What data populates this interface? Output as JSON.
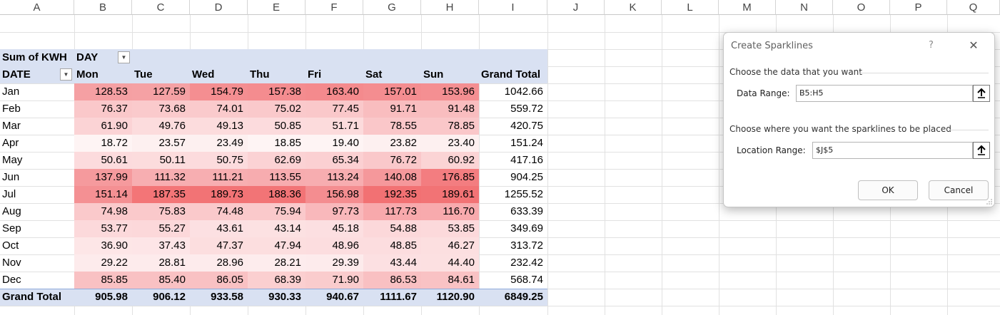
{
  "columns": [
    "A",
    "B",
    "C",
    "D",
    "E",
    "F",
    "G",
    "H",
    "I",
    "J",
    "K",
    "L",
    "M",
    "N",
    "O",
    "P",
    "Q"
  ],
  "pivot": {
    "corner_label": "Sum of KWH",
    "col_field": "DAY",
    "row_field": "DATE",
    "headers": [
      "Mon",
      "Tue",
      "Wed",
      "Thu",
      "Fri",
      "Sat",
      "Sun",
      "Grand Total"
    ],
    "rows": [
      {
        "label": "Jan",
        "values": [
          "128.53",
          "127.59",
          "154.79",
          "157.38",
          "163.40",
          "157.01",
          "153.96"
        ],
        "total": "1042.66",
        "colors": [
          "#f5a0a3",
          "#f5a1a4",
          "#f48e91",
          "#f48c8f",
          "#f48a8d",
          "#f48d90",
          "#f48f92"
        ]
      },
      {
        "label": "Feb",
        "values": [
          "76.37",
          "73.68",
          "74.01",
          "75.02",
          "77.45",
          "91.71",
          "91.48"
        ],
        "total": "559.72",
        "colors": [
          "#fac8ca",
          "#facacc",
          "#facacc",
          "#fac9cb",
          "#fac8ca",
          "#f9bdbf",
          "#f9bdbf"
        ]
      },
      {
        "label": "Mar",
        "values": [
          "61.90",
          "49.76",
          "49.13",
          "50.85",
          "51.71",
          "78.55",
          "78.85"
        ],
        "total": "420.75",
        "colors": [
          "#fbd3d5",
          "#fcdcdd",
          "#fcdcdd",
          "#fcdbdd",
          "#fcdbdc",
          "#fac7c9",
          "#fac7c9"
        ]
      },
      {
        "label": "Apr",
        "values": [
          "18.72",
          "23.57",
          "23.49",
          "18.85",
          "19.40",
          "23.82",
          "23.40"
        ],
        "total": "151.24",
        "colors": [
          "#fef4f4",
          "#fdf0f0",
          "#fdf0f0",
          "#fef4f4",
          "#fef4f4",
          "#fdf0f0",
          "#fdf0f0"
        ]
      },
      {
        "label": "May",
        "values": [
          "50.61",
          "50.11",
          "50.75",
          "62.69",
          "65.34",
          "76.72",
          "60.92"
        ],
        "total": "417.16",
        "colors": [
          "#fcdbdd",
          "#fcdcdd",
          "#fcdbdd",
          "#fbd2d4",
          "#fbd0d2",
          "#fac8ca",
          "#fbd4d5"
        ]
      },
      {
        "label": "Jun",
        "values": [
          "137.99",
          "111.32",
          "111.21",
          "113.55",
          "113.24",
          "140.08",
          "176.85"
        ],
        "total": "904.25",
        "colors": [
          "#f59a9d",
          "#f7aeb1",
          "#f7aeb1",
          "#f7acaf",
          "#f7adb0",
          "#f5989b",
          "#f37d80"
        ]
      },
      {
        "label": "Jul",
        "values": [
          "151.14",
          "187.35",
          "189.73",
          "188.36",
          "156.98",
          "192.35",
          "189.61"
        ],
        "total": "1255.52",
        "colors": [
          "#f49093",
          "#f37577",
          "#f27375",
          "#f27476",
          "#f48d90",
          "#f27173",
          "#f27375"
        ]
      },
      {
        "label": "Aug",
        "values": [
          "74.98",
          "75.83",
          "74.48",
          "75.94",
          "97.73",
          "117.73",
          "116.70"
        ],
        "total": "633.39",
        "colors": [
          "#fac9cb",
          "#fac9cb",
          "#fac9cb",
          "#fac9cb",
          "#f9b8bb",
          "#f8a9ac",
          "#f8aaad"
        ]
      },
      {
        "label": "Sep",
        "values": [
          "53.77",
          "55.27",
          "43.61",
          "43.14",
          "45.18",
          "54.88",
          "53.85"
        ],
        "total": "349.69",
        "colors": [
          "#fcd9db",
          "#fcd8da",
          "#fce0e2",
          "#fce1e2",
          "#fcdfe1",
          "#fcd8da",
          "#fcd9db"
        ]
      },
      {
        "label": "Oct",
        "values": [
          "36.90",
          "37.43",
          "47.37",
          "47.94",
          "48.96",
          "48.85",
          "46.27"
        ],
        "total": "313.72",
        "colors": [
          "#fde6e7",
          "#fde5e7",
          "#fcdedf",
          "#fcdedf",
          "#fcdddf",
          "#fcdddf",
          "#fcdfe0"
        ]
      },
      {
        "label": "Nov",
        "values": [
          "29.22",
          "28.81",
          "28.96",
          "28.21",
          "29.39",
          "43.44",
          "44.40"
        ],
        "total": "232.42",
        "colors": [
          "#fdebec",
          "#fdebec",
          "#fdebec",
          "#fdeced",
          "#fdebec",
          "#fce0e2",
          "#fce0e1"
        ]
      },
      {
        "label": "Dec",
        "values": [
          "85.85",
          "85.40",
          "86.05",
          "68.39",
          "71.90",
          "86.53",
          "84.61"
        ],
        "total": "568.74",
        "colors": [
          "#f9c1c3",
          "#f9c1c3",
          "#f9c1c3",
          "#fbcfd0",
          "#facccd",
          "#f9c0c2",
          "#f9c2c4"
        ]
      }
    ],
    "grand_total": {
      "label": "Grand Total",
      "values": [
        "905.98",
        "906.12",
        "933.58",
        "930.33",
        "940.67",
        "1111.67",
        "1120.90"
      ],
      "total": "6849.25"
    }
  },
  "dialog": {
    "title": "Create Sparklines",
    "help": "?",
    "close": "✕",
    "section1": "Choose the data that you want",
    "data_range_label": "Data Range:",
    "data_range_value": "B5:H5",
    "section2": "Choose where you want the sparklines to be placed",
    "location_range_label": "Location Range:",
    "location_range_value": "$J$5",
    "ok": "OK",
    "cancel": "Cancel",
    "icons": {
      "collapse": "collapse-dialog-icon",
      "close": "close-icon"
    }
  }
}
